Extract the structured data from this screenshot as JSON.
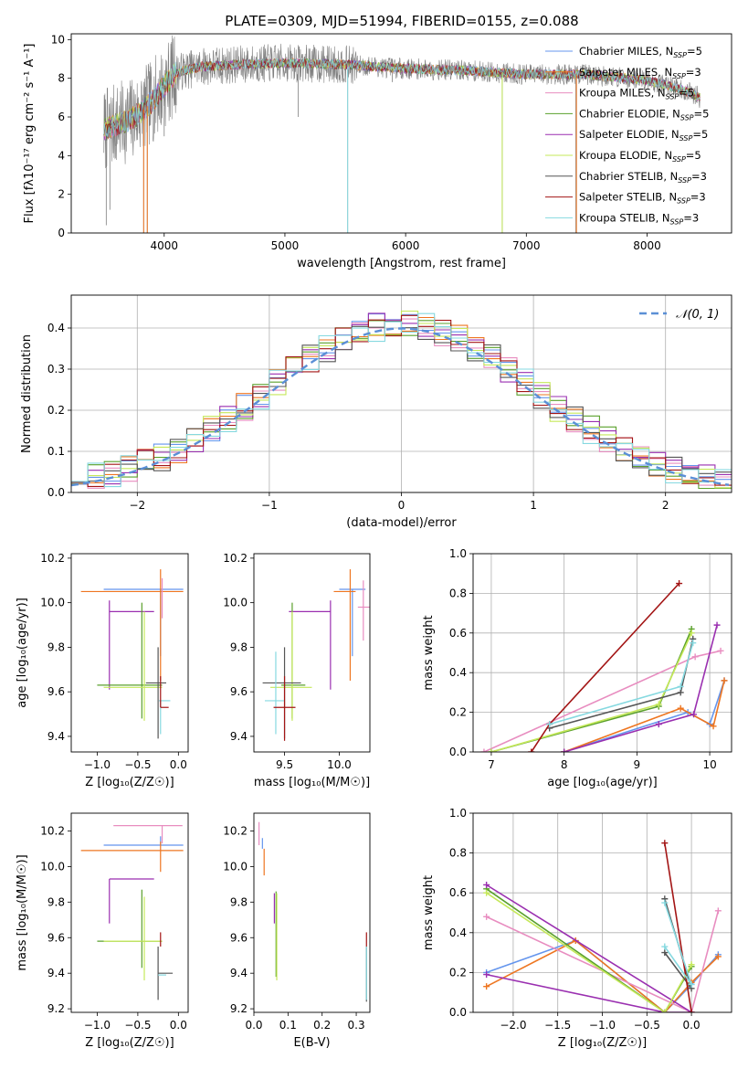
{
  "title": "PLATE=0309, MJD=51994, FIBERID=0155, z=0.088",
  "colors": {
    "ChM": "#6495ed",
    "SaM": "#ee7621",
    "KrM": "#e88dc0",
    "ChE": "#5aa02c",
    "SaE": "#9a2fb0",
    "KrE": "#c5e85a",
    "ChS": "#555555",
    "SaS": "#a31515",
    "KrS": "#86d9e0",
    "gray": "#808080",
    "normal": "#5b8fd6",
    "grid": "#b0b0b0"
  },
  "chart_data": [
    {
      "id": "spectrum",
      "type": "line",
      "xlabel": "wavelength [Angstrom, rest frame]",
      "ylabel": "Flux [fλ10⁻¹⁷ erg cm⁻² s⁻¹ A⁻¹]",
      "xlim": [
        3230,
        8700
      ],
      "ylim": [
        0,
        10.3
      ],
      "xticks": [
        4000,
        5000,
        6000,
        7000,
        8000
      ],
      "yticks": [
        0,
        2,
        4,
        6,
        8,
        10
      ],
      "grid": false,
      "legend_position": "upper-right",
      "legend": [
        {
          "key": "ChM",
          "label": "Chabrier MILES, N",
          "sub": "SSP",
          "tail": "=5"
        },
        {
          "key": "SaM",
          "label": "Salpeter MILES, N",
          "sub": "SSP",
          "tail": "=3"
        },
        {
          "key": "KrM",
          "label": "Kroupa MILES, N",
          "sub": "SSP",
          "tail": "=5"
        },
        {
          "key": "ChE",
          "label": "Chabrier ELODIE, N",
          "sub": "SSP",
          "tail": "=5"
        },
        {
          "key": "SaE",
          "label": "Salpeter ELODIE, N",
          "sub": "SSP",
          "tail": "=5"
        },
        {
          "key": "KrE",
          "label": "Kroupa ELODIE, N",
          "sub": "SSP",
          "tail": "=5"
        },
        {
          "key": "ChS",
          "label": "Chabrier STELIB, N",
          "sub": "SSP",
          "tail": "=3"
        },
        {
          "key": "SaS",
          "label": "Salpeter STELIB, N",
          "sub": "SSP",
          "tail": "=3"
        },
        {
          "key": "KrS",
          "label": "Kroupa STELIB, N",
          "sub": "SSP",
          "tail": "=3"
        }
      ],
      "continuum": [
        [
          3500,
          5.3
        ],
        [
          3600,
          5.6
        ],
        [
          3700,
          5.8
        ],
        [
          3800,
          6.2
        ],
        [
          3900,
          6.8
        ],
        [
          4000,
          7.6
        ],
        [
          4100,
          8.3
        ],
        [
          4300,
          8.6
        ],
        [
          4600,
          8.7
        ],
        [
          5000,
          8.8
        ],
        [
          5500,
          8.7
        ],
        [
          6000,
          8.5
        ],
        [
          6500,
          8.4
        ],
        [
          7000,
          8.2
        ],
        [
          7500,
          8.2
        ],
        [
          8000,
          7.9
        ],
        [
          8300,
          7.4
        ],
        [
          8440,
          7.0
        ]
      ],
      "spikes": [
        [
          3520,
          0.4
        ],
        [
          3550,
          1.2
        ],
        [
          3600,
          4.5
        ],
        [
          3830,
          0
        ],
        [
          3860,
          0
        ],
        [
          4000,
          5.0
        ],
        [
          4100,
          6.6
        ],
        [
          4340,
          7.9
        ],
        [
          4860,
          8.4
        ],
        [
          5110,
          6.0
        ],
        [
          5200,
          9.5
        ],
        [
          5520,
          0
        ],
        [
          5890,
          7.8
        ],
        [
          6560,
          8.3
        ],
        [
          6800,
          0
        ],
        [
          7410,
          0
        ]
      ]
    },
    {
      "id": "residuals",
      "type": "histogram",
      "xlabel": "(data-model)/error",
      "ylabel": "Normed distribution",
      "xlim": [
        -2.5,
        2.5
      ],
      "ylim": [
        0,
        0.48
      ],
      "xticks": [
        -2,
        -1,
        0,
        1,
        2
      ],
      "yticks": [
        0.0,
        0.1,
        0.2,
        0.3,
        0.4
      ],
      "grid": true,
      "legend_position": "upper-right",
      "normal_label": "𝒩(0, 1)",
      "bin_width": 0.125
    },
    {
      "id": "age-vs-Z",
      "type": "errorbar",
      "xlabel": "Z [log₁₀(Z/Z☉)]",
      "ylabel": "age  [log₁₀(age/yr)]",
      "xlim": [
        -1.32,
        0.12
      ],
      "ylim": [
        9.33,
        10.22
      ],
      "xticks": [
        -1.0,
        -0.5,
        0.0
      ],
      "yticks": [
        9.4,
        9.6,
        9.8,
        10.0,
        10.2
      ],
      "points": [
        {
          "key": "ChM",
          "x": -0.22,
          "xerr": [
            0.7,
            0.28
          ],
          "y": 10.06,
          "yerr": [
            0.3,
            0.0
          ]
        },
        {
          "key": "SaM",
          "x": -0.22,
          "xerr": [
            0.98,
            0.28
          ],
          "y": 10.05,
          "yerr": [
            0.4,
            0.1
          ]
        },
        {
          "key": "KrM",
          "x": -0.2,
          "xerr": [
            0.0,
            0.0
          ],
          "y": 9.99,
          "yerr": [
            0.06,
            0.12
          ]
        },
        {
          "key": "SaE",
          "x": -0.85,
          "xerr": [
            0.0,
            0.55
          ],
          "y": 9.96,
          "yerr": [
            0.35,
            0.05
          ]
        },
        {
          "key": "ChE",
          "x": -0.45,
          "xerr": [
            0.55,
            0.25
          ],
          "y": 9.63,
          "yerr": [
            0.15,
            0.37
          ]
        },
        {
          "key": "KrE",
          "x": -0.42,
          "xerr": [
            0.5,
            0.22
          ],
          "y": 9.62,
          "yerr": [
            0.15,
            0.34
          ]
        },
        {
          "key": "ChS",
          "x": -0.25,
          "xerr": [
            0.15,
            0.1
          ],
          "y": 9.64,
          "yerr": [
            0.25,
            0.16
          ]
        },
        {
          "key": "KrS",
          "x": -0.22,
          "xerr": [
            0.02,
            0.12
          ],
          "y": 9.56,
          "yerr": [
            0.15,
            0.0
          ]
        },
        {
          "key": "SaS",
          "x": -0.22,
          "xerr": [
            0.0,
            0.1
          ],
          "y": 9.53,
          "yerr": [
            0.0,
            0.14
          ]
        }
      ]
    },
    {
      "id": "age-vs-mass",
      "type": "errorbar",
      "xlabel": "mass [log₁₀(M/M☉)]",
      "ylabel": "",
      "xlim": [
        9.22,
        10.28
      ],
      "ylim": [
        9.33,
        10.22
      ],
      "xticks": [
        9.5,
        10.0
      ],
      "yticks": [
        9.4,
        9.6,
        9.8,
        10.0,
        10.2
      ],
      "points": [
        {
          "key": "ChM",
          "x": 10.12,
          "xerr": [
            0.12,
            0.12
          ],
          "y": 10.06,
          "yerr": [
            0.3,
            0.0
          ]
        },
        {
          "key": "SaM",
          "x": 10.1,
          "xerr": [
            0.15,
            0.05
          ],
          "y": 10.05,
          "yerr": [
            0.4,
            0.1
          ]
        },
        {
          "key": "KrM",
          "x": 10.22,
          "xerr": [
            0.05,
            0.08
          ],
          "y": 9.98,
          "yerr": [
            0.15,
            0.12
          ]
        },
        {
          "key": "SaE",
          "x": 9.92,
          "xerr": [
            0.38,
            0.0
          ],
          "y": 9.96,
          "yerr": [
            0.35,
            0.05
          ]
        },
        {
          "key": "ChE",
          "x": 9.57,
          "xerr": [
            0.1,
            0.12
          ],
          "y": 9.63,
          "yerr": [
            0.15,
            0.37
          ]
        },
        {
          "key": "KrE",
          "x": 9.57,
          "xerr": [
            0.2,
            0.18
          ],
          "y": 9.62,
          "yerr": [
            0.15,
            0.34
          ]
        },
        {
          "key": "ChS",
          "x": 9.5,
          "xerr": [
            0.2,
            0.15
          ],
          "y": 9.64,
          "yerr": [
            0.25,
            0.16
          ]
        },
        {
          "key": "KrS",
          "x": 9.42,
          "xerr": [
            0.1,
            0.08
          ],
          "y": 9.56,
          "yerr": [
            0.15,
            0.22
          ]
        },
        {
          "key": "SaS",
          "x": 9.5,
          "xerr": [
            0.1,
            0.1
          ],
          "y": 9.53,
          "yerr": [
            0.15,
            0.14
          ]
        }
      ]
    },
    {
      "id": "weight-vs-age",
      "type": "line",
      "xlabel": "age  [log₁₀(age/yr)]",
      "ylabel": "mass weight",
      "xlim": [
        6.75,
        10.3
      ],
      "ylim": [
        0,
        1.0
      ],
      "xticks": [
        7,
        8,
        9,
        10
      ],
      "yticks": [
        0.0,
        0.2,
        0.4,
        0.6,
        0.8,
        1.0
      ],
      "grid": true,
      "series": [
        {
          "key": "ChM",
          "x": [
            8.0,
            9.7,
            10.0,
            10.2
          ],
          "y": [
            0.0,
            0.2,
            0.14,
            0.36
          ]
        },
        {
          "key": "SaM",
          "x": [
            8.0,
            9.6,
            10.05,
            10.2
          ],
          "y": [
            0.0,
            0.22,
            0.13,
            0.36
          ]
        },
        {
          "key": "KrM",
          "x": [
            6.9,
            9.8,
            10.15
          ],
          "y": [
            0.0,
            0.48,
            0.51
          ]
        },
        {
          "key": "ChE",
          "x": [
            7.0,
            9.3,
            9.75
          ],
          "y": [
            0.0,
            0.23,
            0.62
          ]
        },
        {
          "key": "SaE",
          "x": [
            8.0,
            9.3,
            9.78,
            10.1
          ],
          "y": [
            0.0,
            0.14,
            0.19,
            0.64
          ]
        },
        {
          "key": "KrE",
          "x": [
            7.0,
            9.3,
            9.75
          ],
          "y": [
            0.0,
            0.24,
            0.6
          ]
        },
        {
          "key": "ChS",
          "x": [
            7.8,
            9.6,
            9.77
          ],
          "y": [
            0.12,
            0.3,
            0.57
          ]
        },
        {
          "key": "SaS",
          "x": [
            7.55,
            7.8,
            9.58
          ],
          "y": [
            0.0,
            0.14,
            0.85
          ]
        },
        {
          "key": "KrS",
          "x": [
            7.8,
            9.6,
            9.77
          ],
          "y": [
            0.14,
            0.33,
            0.55
          ]
        }
      ]
    },
    {
      "id": "mass-vs-Z",
      "type": "errorbar",
      "xlabel": "Z [log₁₀(Z/Z☉)]",
      "ylabel": "mass [log₁₀(M/M☉)]",
      "xlim": [
        -1.32,
        0.12
      ],
      "ylim": [
        9.18,
        10.3
      ],
      "xticks": [
        -1.0,
        -0.5,
        0.0
      ],
      "yticks": [
        9.2,
        9.4,
        9.6,
        9.8,
        10.0,
        10.2
      ],
      "points": [
        {
          "key": "KrM",
          "x": -0.2,
          "xerr": [
            0.6,
            0.25
          ],
          "y": 10.23,
          "yerr": [
            0.1,
            0.0
          ]
        },
        {
          "key": "ChM",
          "x": -0.22,
          "xerr": [
            0.7,
            0.28
          ],
          "y": 10.12,
          "yerr": [
            0.0,
            0.05
          ]
        },
        {
          "key": "SaM",
          "x": -0.22,
          "xerr": [
            0.98,
            0.28
          ],
          "y": 10.09,
          "yerr": [
            0.12,
            0.05
          ]
        },
        {
          "key": "SaE",
          "x": -0.85,
          "xerr": [
            0.0,
            0.55
          ],
          "y": 9.93,
          "yerr": [
            0.25,
            0.0
          ]
        },
        {
          "key": "ChE",
          "x": -0.45,
          "xerr": [
            0.55,
            0.25
          ],
          "y": 9.58,
          "yerr": [
            0.15,
            0.29
          ]
        },
        {
          "key": "KrE",
          "x": -0.42,
          "xerr": [
            0.5,
            0.22
          ],
          "y": 9.58,
          "yerr": [
            0.22,
            0.25
          ]
        },
        {
          "key": "ChS",
          "x": -0.25,
          "xerr": [
            0.0,
            0.18
          ],
          "y": 9.4,
          "yerr": [
            0.15,
            0.15
          ]
        },
        {
          "key": "SaS",
          "x": -0.22,
          "xerr": [
            0.0,
            0.0
          ],
          "y": 9.55,
          "yerr": [
            0.0,
            0.08
          ]
        },
        {
          "key": "KrS",
          "x": -0.25,
          "xerr": [
            0.0,
            0.1
          ],
          "y": 9.39,
          "yerr": [
            0.0,
            0.0
          ]
        }
      ]
    },
    {
      "id": "mass-vs-EBV",
      "type": "errorbar",
      "xlabel": "E(B-V)",
      "ylabel": "",
      "xlim": [
        0.0,
        0.34
      ],
      "ylim": [
        9.18,
        10.3
      ],
      "xticks": [
        0.0,
        0.1,
        0.2,
        0.3
      ],
      "yticks": [
        9.2,
        9.4,
        9.6,
        9.8,
        10.0,
        10.2
      ],
      "points": [
        {
          "key": "KrM",
          "x": 0.015,
          "y": 10.17,
          "yerr": [
            0.05,
            0.08
          ]
        },
        {
          "key": "ChM",
          "x": 0.025,
          "y": 10.13,
          "yerr": [
            0.03,
            0.03
          ]
        },
        {
          "key": "SaM",
          "x": 0.03,
          "y": 10.05,
          "yerr": [
            0.1,
            0.05
          ]
        },
        {
          "key": "SaE",
          "x": 0.06,
          "y": 9.79,
          "yerr": [
            0.11,
            0.06
          ]
        },
        {
          "key": "ChE",
          "x": 0.065,
          "y": 9.6,
          "yerr": [
            0.22,
            0.26
          ]
        },
        {
          "key": "KrE",
          "x": 0.067,
          "y": 9.6,
          "yerr": [
            0.24,
            0.25
          ]
        },
        {
          "key": "SaS",
          "x": 0.33,
          "y": 9.55,
          "yerr": [
            0.0,
            0.08
          ]
        },
        {
          "key": "ChS",
          "x": 0.33,
          "y": 9.4,
          "yerr": [
            0.16,
            0.15
          ]
        },
        {
          "key": "KrS",
          "x": 0.33,
          "y": 9.4,
          "yerr": [
            0.15,
            0.15
          ]
        }
      ]
    },
    {
      "id": "weight-vs-Z",
      "type": "line",
      "xlabel": "Z [log₁₀(Z/Z☉)]",
      "ylabel": "mass weight",
      "xlim": [
        -2.45,
        0.45
      ],
      "ylim": [
        0,
        1.0
      ],
      "xticks": [
        -2.0,
        -1.5,
        -1.0,
        -0.5,
        0.0
      ],
      "yticks": [
        0.0,
        0.2,
        0.4,
        0.6,
        0.8,
        1.0
      ],
      "grid": true,
      "series": [
        {
          "key": "ChM",
          "x": [
            -2.3,
            -1.3,
            -0.3,
            0.0,
            0.3
          ],
          "y": [
            0.2,
            0.36,
            0.0,
            0.14,
            0.29
          ]
        },
        {
          "key": "SaM",
          "x": [
            -2.3,
            -1.3,
            -0.3,
            0.0,
            0.3
          ],
          "y": [
            0.13,
            0.36,
            0.0,
            0.15,
            0.28
          ]
        },
        {
          "key": "KrM",
          "x": [
            -2.3,
            0.0,
            0.3
          ],
          "y": [
            0.48,
            0.0,
            0.51
          ]
        },
        {
          "key": "ChE",
          "x": [
            -2.3,
            -0.3,
            0.0
          ],
          "y": [
            0.62,
            0.0,
            0.23
          ]
        },
        {
          "key": "SaE",
          "x": [
            -2.3,
            0.0,
            -0.3,
            -2.3
          ],
          "y": [
            0.64,
            0.0,
            0.0,
            0.19
          ]
        },
        {
          "key": "KrE",
          "x": [
            -2.3,
            -0.3,
            0.0
          ],
          "y": [
            0.6,
            0.0,
            0.24
          ]
        },
        {
          "key": "ChS",
          "x": [
            -0.3,
            0.0,
            -0.3
          ],
          "y": [
            0.57,
            0.12,
            0.3
          ]
        },
        {
          "key": "SaS",
          "x": [
            -0.3,
            0.0
          ],
          "y": [
            0.85,
            0.0
          ]
        },
        {
          "key": "KrS",
          "x": [
            -0.3,
            0.0,
            -0.3
          ],
          "y": [
            0.55,
            0.14,
            0.33
          ]
        }
      ]
    }
  ]
}
